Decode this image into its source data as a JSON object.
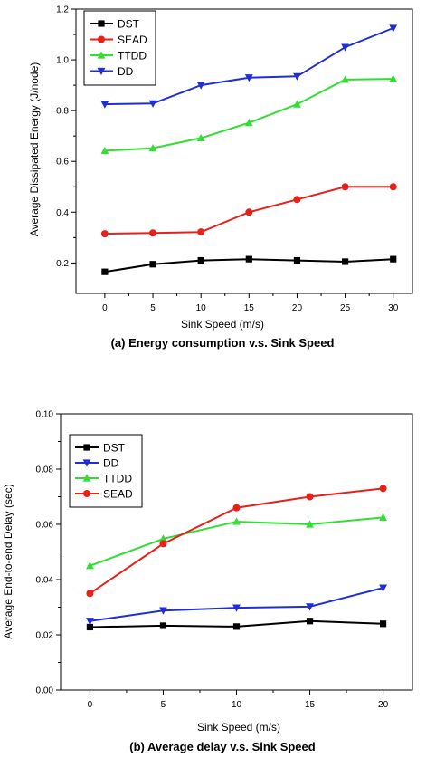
{
  "chart_data": [
    {
      "type": "line",
      "title": "(a) Energy consumption v.s. Sink Speed",
      "xlabel": "Sink Speed (m/s)",
      "ylabel": "Average Dissipated Energy (J/node)",
      "x": [
        0,
        5,
        10,
        15,
        20,
        25,
        30
      ],
      "xticks": [
        "0",
        "5",
        "10",
        "15",
        "20",
        "25",
        "30"
      ],
      "xlim": [
        -3,
        32
      ],
      "yticks": [
        "0.2",
        "0.4",
        "0.6",
        "0.8",
        "1.0",
        "1.2"
      ],
      "ytick_values": [
        0.2,
        0.4,
        0.6,
        0.8,
        1.0,
        1.2
      ],
      "ylim": [
        0.08,
        1.2
      ],
      "legend": "top-left",
      "grid": false,
      "series": [
        {
          "name": "DST",
          "color": "#000000",
          "marker": "square",
          "values": [
            0.165,
            0.195,
            0.21,
            0.215,
            0.21,
            0.205,
            0.215
          ]
        },
        {
          "name": "SEAD",
          "color": "#e8201a",
          "marker": "circle",
          "values": [
            0.315,
            0.318,
            0.322,
            0.4,
            0.45,
            0.5,
            0.5
          ]
        },
        {
          "name": "TTDD",
          "color": "#33dd33",
          "marker": "triangle-up",
          "values": [
            0.642,
            0.652,
            0.692,
            0.752,
            0.825,
            0.922,
            0.925
          ]
        },
        {
          "name": "DD",
          "color": "#1f2ed6",
          "marker": "triangle-down",
          "values": [
            0.825,
            0.828,
            0.9,
            0.93,
            0.935,
            1.05,
            1.125
          ]
        }
      ]
    },
    {
      "type": "line",
      "title": "(b) Average delay v.s. Sink Speed",
      "xlabel": "Sink Speed (m/s)",
      "ylabel": "Average End-to-end Delay (sec)",
      "x": [
        0,
        5,
        10,
        15,
        20
      ],
      "xticks": [
        "0",
        "5",
        "10",
        "15",
        "20"
      ],
      "xlim": [
        -2,
        22
      ],
      "yticks": [
        "0.00",
        "0.02",
        "0.04",
        "0.06",
        "0.08",
        "0.10"
      ],
      "ytick_values": [
        0.0,
        0.02,
        0.04,
        0.06,
        0.08,
        0.1
      ],
      "ylim": [
        0.0,
        0.1
      ],
      "legend": "top-left",
      "grid": false,
      "series": [
        {
          "name": "DST",
          "color": "#000000",
          "marker": "square",
          "values": [
            0.0228,
            0.0233,
            0.023,
            0.025,
            0.024
          ]
        },
        {
          "name": "DD",
          "color": "#1f2ed6",
          "marker": "triangle-down",
          "values": [
            0.025,
            0.0288,
            0.0298,
            0.0302,
            0.037
          ]
        },
        {
          "name": "TTDD",
          "color": "#33dd33",
          "marker": "triangle-up",
          "values": [
            0.045,
            0.0548,
            0.061,
            0.06,
            0.0625
          ]
        },
        {
          "name": "SEAD",
          "color": "#e8201a",
          "marker": "circle",
          "values": [
            0.035,
            0.053,
            0.066,
            0.07,
            0.073
          ]
        }
      ]
    }
  ]
}
